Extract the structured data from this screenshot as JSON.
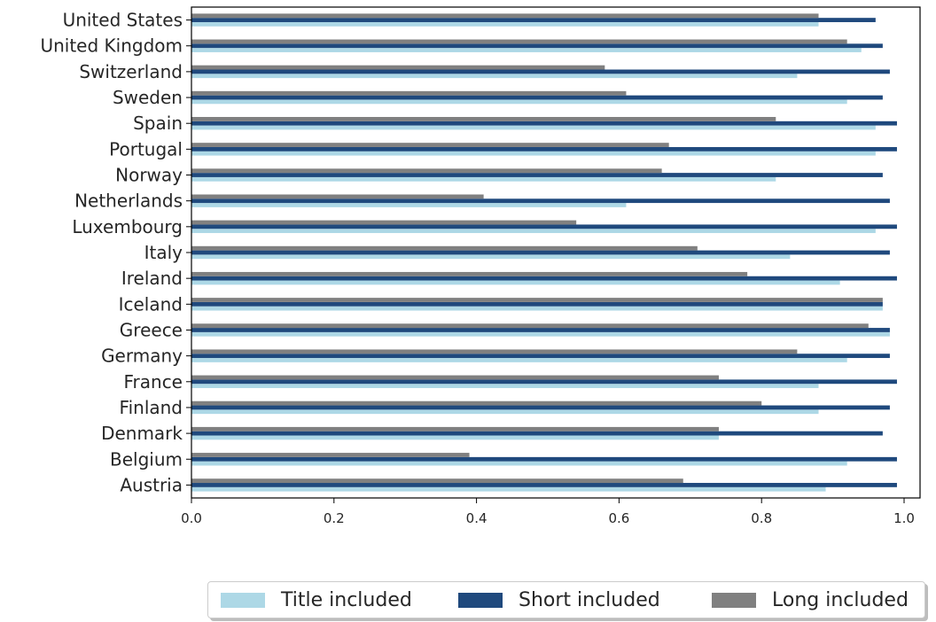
{
  "chart_data": {
    "type": "bar",
    "orientation": "horizontal",
    "categories": [
      "United States",
      "United Kingdom",
      "Switzerland",
      "Sweden",
      "Spain",
      "Portugal",
      "Norway",
      "Netherlands",
      "Luxembourg",
      "Italy",
      "Ireland",
      "Iceland",
      "Greece",
      "Germany",
      "France",
      "Finland",
      "Denmark",
      "Belgium",
      "Austria"
    ],
    "series": [
      {
        "name": "Title included",
        "color": "#add8e6",
        "values": [
          0.88,
          0.94,
          0.85,
          0.92,
          0.96,
          0.96,
          0.82,
          0.61,
          0.96,
          0.84,
          0.91,
          0.97,
          0.98,
          0.92,
          0.88,
          0.88,
          0.74,
          0.92,
          0.89
        ]
      },
      {
        "name": "Short included",
        "color": "#1f497d",
        "values": [
          0.96,
          0.97,
          0.98,
          0.97,
          0.99,
          0.99,
          0.97,
          0.98,
          0.99,
          0.98,
          0.99,
          0.97,
          0.98,
          0.98,
          0.99,
          0.98,
          0.97,
          0.99,
          0.99
        ]
      },
      {
        "name": "Long included",
        "color": "#808080",
        "values": [
          0.88,
          0.92,
          0.58,
          0.61,
          0.82,
          0.67,
          0.66,
          0.41,
          0.54,
          0.71,
          0.78,
          0.97,
          0.95,
          0.85,
          0.74,
          0.8,
          0.74,
          0.39,
          0.69
        ]
      }
    ],
    "xlim": [
      0,
      1.0
    ],
    "xticks": [
      "0.0",
      "0.2",
      "0.4",
      "0.6",
      "0.8",
      "1.0"
    ],
    "title": "",
    "xlabel": "",
    "ylabel": "",
    "grid": false,
    "legend_position": "bottom-right"
  }
}
